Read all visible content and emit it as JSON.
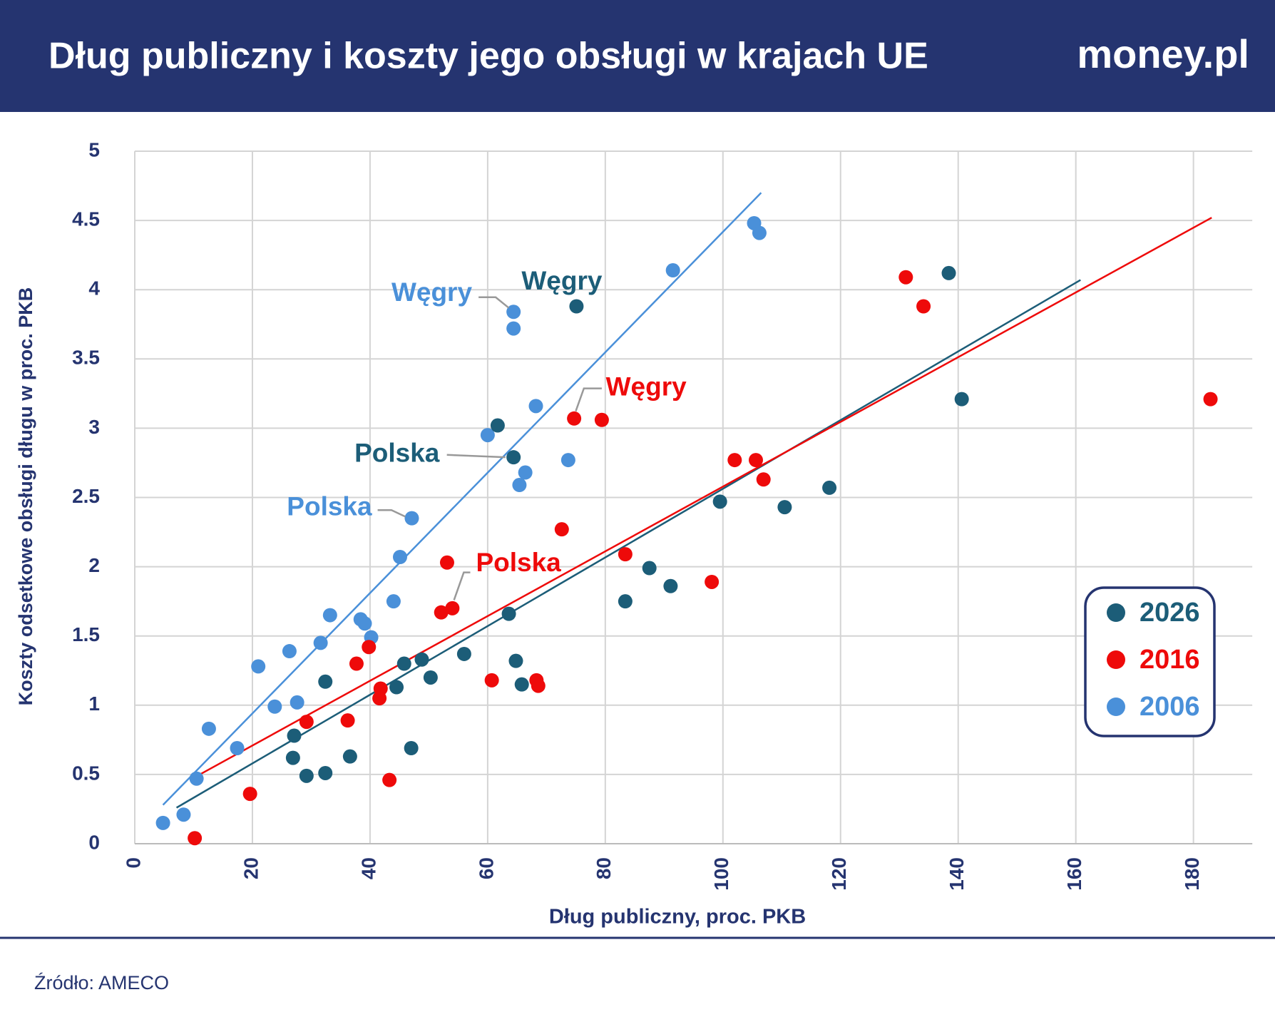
{
  "header": {
    "title": "Dług publiczny i koszty jego obsługi w krajach UE",
    "logo": "money.pl"
  },
  "chart_data": {
    "type": "scatter",
    "x_label": "Dług publiczny, proc. PKB",
    "y_label": "Koszty odsetkowe obsługi długu w proc. PKB",
    "xlim": [
      0,
      190
    ],
    "xticks": [
      0,
      20,
      40,
      60,
      80,
      100,
      120,
      140,
      160,
      180
    ],
    "ylim": [
      0,
      5
    ],
    "yticks": [
      0,
      0.5,
      1,
      1.5,
      2,
      2.5,
      3,
      3.5,
      4,
      4.5,
      5
    ],
    "grid": true,
    "legend": "right",
    "series": [
      {
        "name": "2026",
        "color": "#1c5d78",
        "x": [
          75.1,
          138.4,
          140.6,
          61.7,
          64.4,
          118.1,
          99.5,
          110.5,
          87.5,
          91.1,
          83.4,
          63.6,
          56.0,
          64.8,
          48.8,
          45.8,
          50.3,
          65.8,
          44.5,
          32.4,
          27.1,
          26.9,
          36.6,
          47.0,
          29.2,
          32.4
        ],
        "values": [
          3.88,
          4.12,
          3.21,
          3.02,
          2.79,
          2.57,
          2.47,
          2.43,
          1.99,
          1.86,
          1.75,
          1.66,
          1.37,
          1.32,
          1.33,
          1.3,
          1.2,
          1.15,
          1.13,
          1.17,
          0.78,
          0.62,
          0.63,
          0.69,
          0.49,
          0.51
        ],
        "point_labels": [
          "Węgry",
          null,
          null,
          null,
          "Polska",
          null,
          null,
          null,
          null,
          null,
          null,
          null,
          null,
          null,
          null,
          null,
          null,
          null,
          null,
          null,
          null,
          null,
          null,
          null,
          null,
          null
        ],
        "trendline": {
          "x": [
            7.1,
            160.8
          ],
          "values": [
            0.26,
            4.07
          ]
        }
      },
      {
        "name": "2016",
        "color": "#ee0a0a",
        "x": [
          131.1,
          134.1,
          182.9,
          79.4,
          74.7,
          102.0,
          105.6,
          106.9,
          72.6,
          83.4,
          53.1,
          98.1,
          52.1,
          54.0,
          39.8,
          37.7,
          60.7,
          68.3,
          68.6,
          41.8,
          41.6,
          36.2,
          29.2,
          43.3,
          19.6,
          10.2
        ],
        "values": [
          4.09,
          3.88,
          3.21,
          3.06,
          3.07,
          2.77,
          2.77,
          2.63,
          2.27,
          2.09,
          2.03,
          1.89,
          1.67,
          1.7,
          1.42,
          1.3,
          1.18,
          1.18,
          1.14,
          1.12,
          1.05,
          0.89,
          0.88,
          0.46,
          0.36,
          0.04
        ],
        "point_labels": [
          null,
          null,
          null,
          null,
          "Węgry",
          null,
          null,
          null,
          null,
          null,
          null,
          null,
          null,
          "Polska",
          null,
          null,
          null,
          null,
          null,
          null,
          null,
          null,
          null,
          null,
          null,
          null
        ],
        "trendline": {
          "x": [
            10.2,
            183.1
          ],
          "values": [
            0.48,
            4.52
          ]
        }
      },
      {
        "name": "2006",
        "color": "#4a90d9",
        "x": [
          105.3,
          106.2,
          91.5,
          64.4,
          64.4,
          68.2,
          60.0,
          73.7,
          66.4,
          65.4,
          47.1,
          45.1,
          44.0,
          33.2,
          38.4,
          39.1,
          40.2,
          31.6,
          26.3,
          21.0,
          27.6,
          23.8,
          12.6,
          17.4,
          10.5,
          8.3,
          4.8
        ],
        "values": [
          4.48,
          4.41,
          4.14,
          3.84,
          3.72,
          3.16,
          2.95,
          2.77,
          2.68,
          2.59,
          2.35,
          2.07,
          1.75,
          1.65,
          1.62,
          1.59,
          1.49,
          1.45,
          1.39,
          1.28,
          1.02,
          0.99,
          0.83,
          0.69,
          0.47,
          0.21,
          0.15
        ],
        "point_labels": [
          null,
          null,
          null,
          "Węgry",
          null,
          null,
          null,
          null,
          null,
          null,
          "Polska",
          null,
          null,
          null,
          null,
          null,
          null,
          null,
          null,
          null,
          null,
          null,
          null,
          null,
          null,
          null,
          null
        ],
        "trendline": {
          "x": [
            4.8,
            106.5
          ],
          "values": [
            0.28,
            4.7
          ]
        }
      }
    ]
  },
  "footer": {
    "source": "Źródło: AMECO"
  }
}
